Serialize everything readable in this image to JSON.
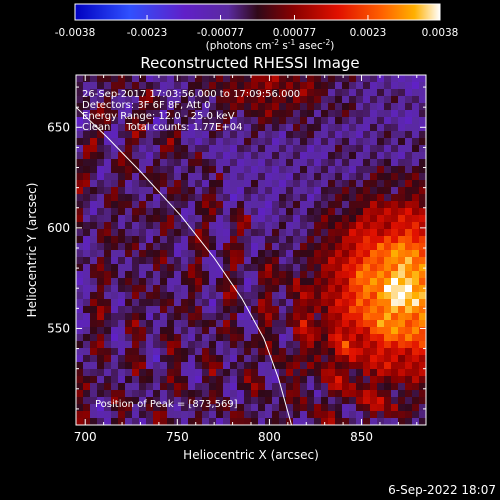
{
  "chart_data": {
    "type": "heatmap",
    "title": "Reconstructed RHESSI Image",
    "xlabel": "Heliocentric X (arcsec)",
    "ylabel": "Heliocentric Y (arcsec)",
    "xlim": [
      695,
      885
    ],
    "ylim": [
      502,
      676
    ],
    "x_ticks": [
      "700",
      "750",
      "800",
      "850"
    ],
    "x_tick_values": [
      700,
      750,
      800,
      850
    ],
    "y_ticks": [
      "550",
      "600",
      "650"
    ],
    "y_tick_values": [
      550,
      600,
      650
    ],
    "colorbar": {
      "range": [
        -0.0038,
        0.0038
      ],
      "tick_labels": [
        "-0.0038",
        "-0.0023",
        "-0.00077",
        "0.00077",
        "0.0023",
        "0.0038"
      ],
      "tick_values": [
        -0.0038,
        -0.0023,
        -0.00077,
        0.00077,
        0.0023,
        0.0038
      ],
      "units_prefix": "(photons cm",
      "units_exp1": "-2",
      "units_mid1": " s",
      "units_exp2": "-1",
      "units_mid2": " asec",
      "units_exp3": "-2",
      "units_suffix": ")",
      "colors": [
        "#0000c0",
        "#3050ff",
        "#6020c8",
        "#5a2aa0",
        "#300818",
        "#8a0000",
        "#e01000",
        "#ff6000",
        "#ffb000",
        "#ffffff"
      ]
    },
    "annotations": [
      "26-Sep-2017 17:03:56.000 to 17:09:56.000",
      "Detectors: 3F 6F 8F, Att 0",
      "Energy Range: 12.0 - 25.0 keV",
      "Clean     Total counts: 1.77E+04"
    ],
    "peak_label": "Position of Peak = [873,569]",
    "peak": [
      873,
      569
    ],
    "limb_curve": [
      [
        695,
        660
      ],
      [
        712,
        645
      ],
      [
        730,
        628
      ],
      [
        752,
        606
      ],
      [
        770,
        585
      ],
      [
        785,
        565
      ],
      [
        797,
        545
      ],
      [
        805,
        525
      ],
      [
        812,
        502
      ]
    ]
  },
  "footer": {
    "date": "6-Sep-2022 18:07"
  }
}
